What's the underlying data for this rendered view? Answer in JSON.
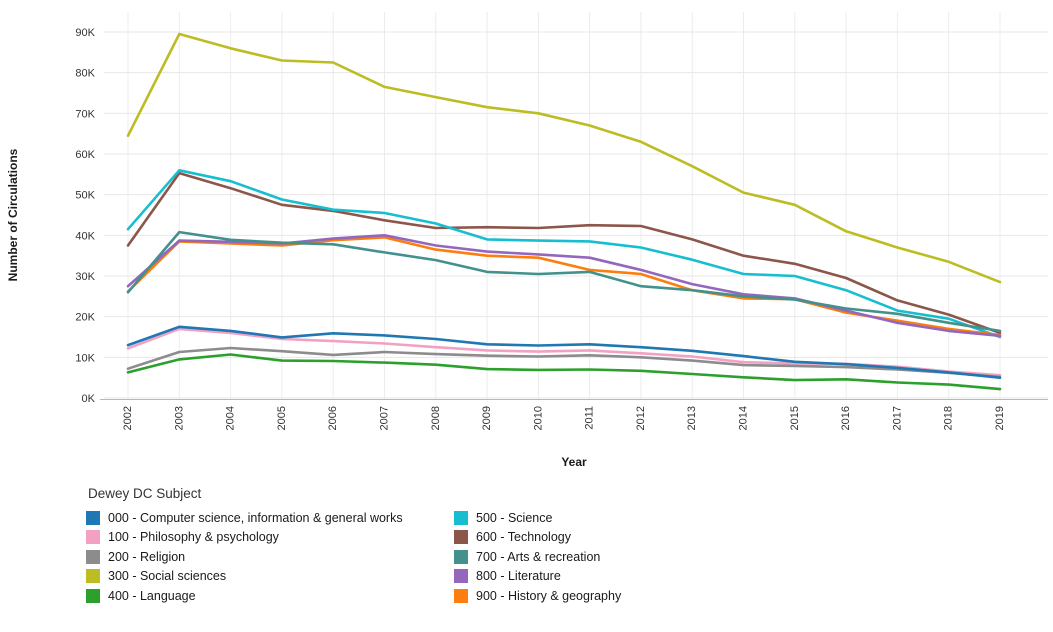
{
  "chart_data": {
    "type": "line",
    "title": "",
    "xlabel": "Year",
    "ylabel": "Number of Circulations",
    "legend_title": "Dewey DC Subject",
    "legend_position": "bottom",
    "grid": true,
    "x": [
      2002,
      2003,
      2004,
      2005,
      2006,
      2007,
      2008,
      2009,
      2010,
      2011,
      2012,
      2013,
      2014,
      2015,
      2016,
      2017,
      2018,
      2019
    ],
    "xtick_labels": [
      "2002",
      "2003",
      "2004",
      "2005",
      "2006",
      "2007",
      "2008",
      "2009",
      "2010",
      "2011",
      "2012",
      "2013",
      "2014",
      "2015",
      "2016",
      "2017",
      "2018",
      "2019"
    ],
    "ylim": [
      0,
      90000
    ],
    "ytick_step": 10000,
    "ytick_labels": [
      "0K",
      "10K",
      "20K",
      "30K",
      "40K",
      "50K",
      "60K",
      "70K",
      "80K",
      "90K"
    ],
    "series": [
      {
        "code": "000",
        "name": "000 - Computer science, information & general works",
        "color": "#1f77b4",
        "values": [
          13000,
          17500,
          16500,
          14900,
          15900,
          15400,
          14500,
          13200,
          12900,
          13200,
          12500,
          11600,
          10300,
          8900,
          8300,
          7400,
          6300,
          5000
        ]
      },
      {
        "code": "100",
        "name": "100 - Philosophy & psychology",
        "color": "#f2a1c4",
        "values": [
          12200,
          17000,
          16000,
          14500,
          14000,
          13400,
          12500,
          11700,
          11400,
          11700,
          11000,
          10200,
          8800,
          8500,
          8400,
          7700,
          6500,
          5600
        ]
      },
      {
        "code": "200",
        "name": "200 - Religion",
        "color": "#8c8c8c",
        "values": [
          7200,
          11300,
          12300,
          11500,
          10600,
          11300,
          10800,
          10400,
          10200,
          10500,
          10000,
          9200,
          8100,
          7900,
          7600,
          7000,
          6200,
          5200
        ]
      },
      {
        "code": "300",
        "name": "300 - Social sciences",
        "color": "#bcbd22",
        "values": [
          64500,
          89500,
          86000,
          83000,
          82500,
          76500,
          74000,
          71500,
          70000,
          67000,
          63000,
          57000,
          50500,
          47500,
          41000,
          37000,
          33500,
          28500
        ]
      },
      {
        "code": "400",
        "name": "400 - Language",
        "color": "#2ca02c",
        "values": [
          6300,
          9500,
          10700,
          9200,
          9100,
          8700,
          8200,
          7100,
          6900,
          7000,
          6700,
          5900,
          5100,
          4400,
          4600,
          3800,
          3300,
          2200
        ]
      },
      {
        "code": "500",
        "name": "500 - Science",
        "color": "#17becf",
        "values": [
          41500,
          56000,
          53300,
          48800,
          46300,
          45500,
          42900,
          39000,
          38700,
          38500,
          37000,
          34000,
          30500,
          30000,
          26500,
          21500,
          19500,
          15000
        ]
      },
      {
        "code": "600",
        "name": "600 - Technology",
        "color": "#8c564b",
        "values": [
          37500,
          55300,
          51600,
          47500,
          46000,
          43700,
          41800,
          42000,
          41800,
          42500,
          42300,
          39000,
          35000,
          33000,
          29500,
          24000,
          20500,
          16000
        ]
      },
      {
        "code": "700",
        "name": "700 - Arts & recreation",
        "color": "#42918c",
        "values": [
          26000,
          40800,
          38900,
          38200,
          37800,
          35800,
          33900,
          31000,
          30500,
          31000,
          27500,
          26500,
          25000,
          24200,
          22000,
          20700,
          18500,
          16500
        ]
      },
      {
        "code": "800",
        "name": "800 - Literature",
        "color": "#9467bd",
        "values": [
          27500,
          38700,
          38400,
          38000,
          39200,
          40000,
          37500,
          36000,
          35300,
          34500,
          31500,
          28000,
          25500,
          24500,
          21500,
          18500,
          16500,
          15300
        ]
      },
      {
        "code": "900",
        "name": "900 - History & geography",
        "color": "#fb7e0e",
        "values": [
          26200,
          38500,
          38000,
          37500,
          38800,
          39500,
          36500,
          35000,
          34500,
          31500,
          30500,
          26500,
          24500,
          24300,
          21000,
          19000,
          17000,
          15500
        ]
      }
    ]
  }
}
